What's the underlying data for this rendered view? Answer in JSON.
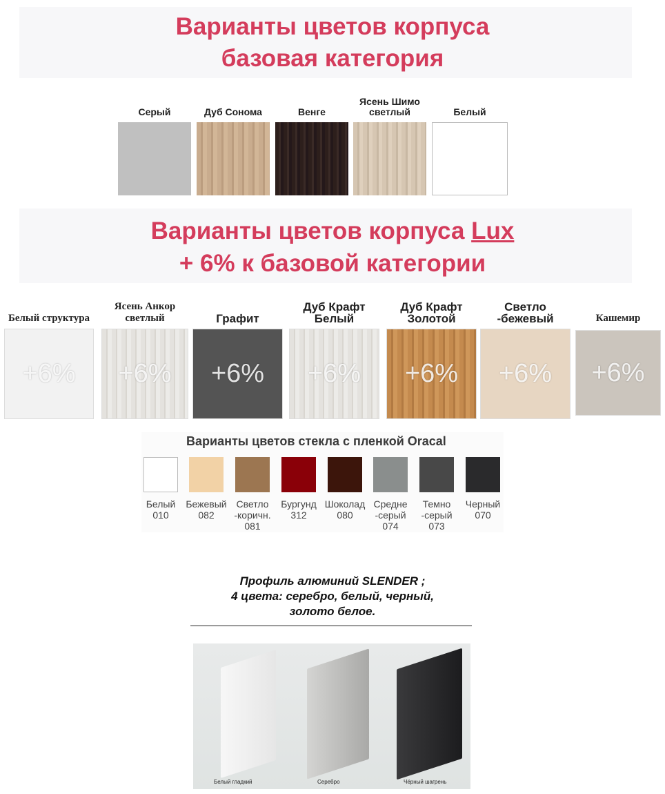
{
  "base": {
    "title_line1": "Варианты цветов корпуса",
    "title_line2": "базовая категория",
    "swatches": [
      {
        "label": "Серый",
        "color": "#c0c0c0"
      },
      {
        "label": "Дуб Сонома",
        "color": "#c9ac8e"
      },
      {
        "label": "Венге",
        "color": "#2d1f1c"
      },
      {
        "label": "Ясень Шимо светлый",
        "color": "#d6c6b2"
      },
      {
        "label": "Белый",
        "color": "#ffffff"
      }
    ]
  },
  "lux": {
    "title_line1_prefix": "Варианты цветов корпуса ",
    "title_line1_lux": "Lux",
    "title_line2": "+ 6% к базовой категории",
    "surcharge": "+6%",
    "swatches": [
      {
        "label": "Белый структура",
        "color": "#f2f2f2"
      },
      {
        "label": "Ясень Анкор светлый",
        "color": "#e4e2de"
      },
      {
        "label": "Графит",
        "color": "#545454"
      },
      {
        "label": "Дуб Крафт Белый",
        "color": "#e6e1d6"
      },
      {
        "label": "Дуб Крафт Золотой",
        "color": "#c48a4e"
      },
      {
        "label": "Светло -бежевый",
        "color": "#e7d6c2"
      },
      {
        "label": "Кашемир",
        "color": "#cbc5bd"
      }
    ]
  },
  "oracal": {
    "title": "Варианты цветов стекла с пленкой Oracal",
    "swatches": [
      {
        "name": "Белый",
        "code": "010",
        "color": "#ffffff"
      },
      {
        "name": "Бежевый",
        "code": "082",
        "color": "#f2d2a6"
      },
      {
        "name": "Светло -коричн.",
        "code": "081",
        "color": "#9c7651"
      },
      {
        "name": "Бургунд",
        "code": "312",
        "color": "#8a0008"
      },
      {
        "name": "Шоколад",
        "code": "080",
        "color": "#3c150b"
      },
      {
        "name": "Средне -серый",
        "code": "074",
        "color": "#8a8e8d"
      },
      {
        "name": "Темно -серый",
        "code": "073",
        "color": "#484848"
      },
      {
        "name": "Черный",
        "code": "070",
        "color": "#2a2a2c"
      }
    ]
  },
  "profile": {
    "line1": "Профиль алюминий SLENDER ;",
    "line2": "4 цвета: серебро, белый, черный,",
    "line3": "золото белое.",
    "captions": [
      "Белый гладкий",
      "Серебро",
      "Чёрный шагрень"
    ]
  }
}
